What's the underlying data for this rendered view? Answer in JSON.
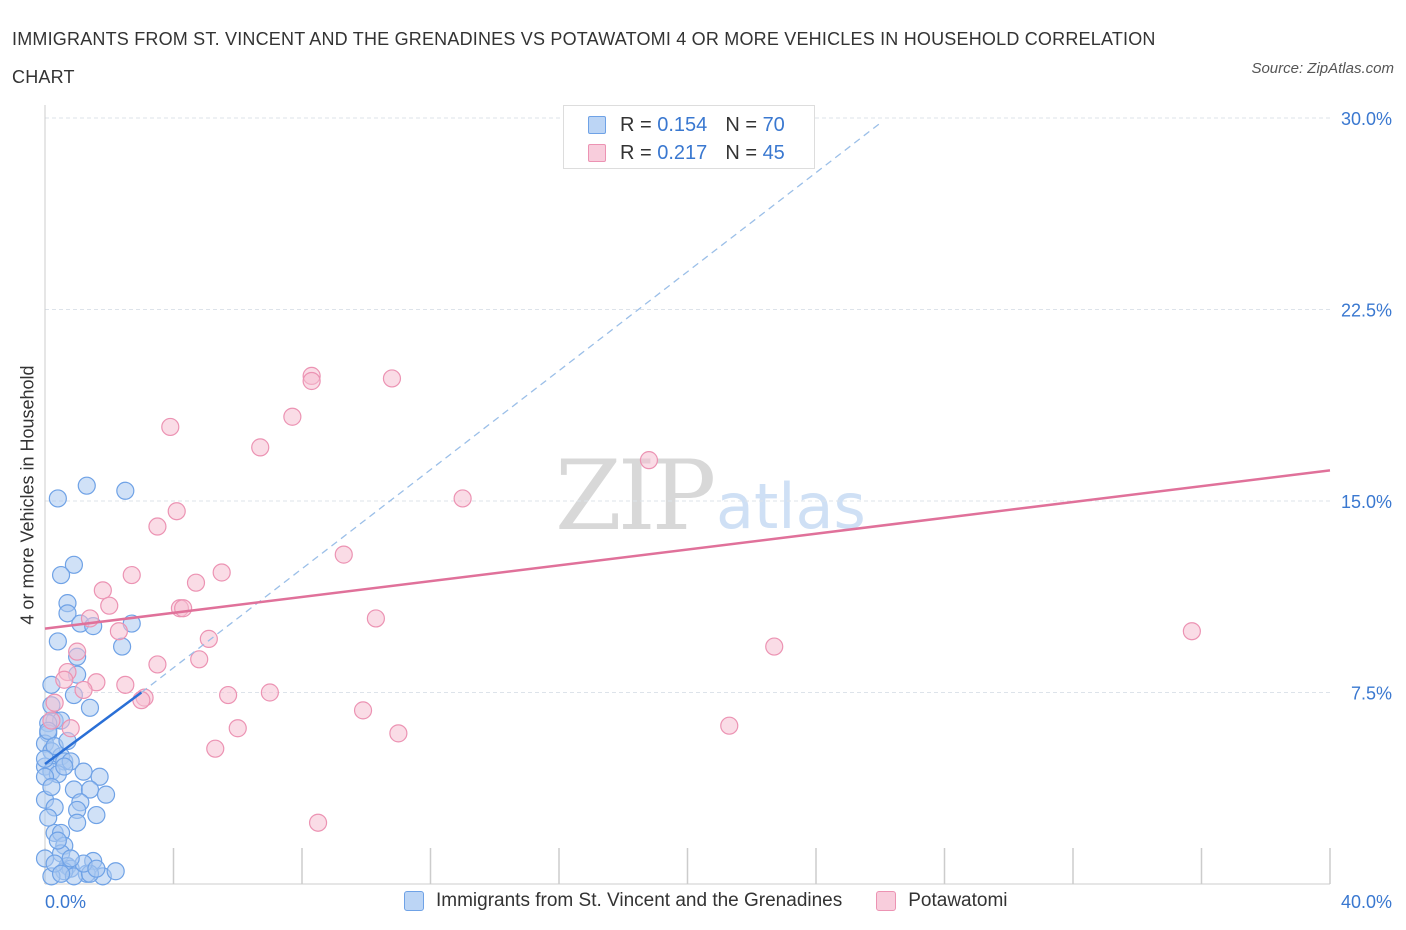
{
  "title": "IMMIGRANTS FROM ST. VINCENT AND THE GRENADINES VS POTAWATOMI 4 OR MORE VEHICLES IN HOUSEHOLD CORRELATION CHART",
  "source": "Source: ZipAtlas.com",
  "watermark": {
    "zip": "ZIP",
    "atlas": "atlas"
  },
  "legend": {
    "rows": [
      {
        "r_label": "R = ",
        "r_value": "0.154",
        "n_label": "N = ",
        "n_value": "70"
      },
      {
        "r_label": "R = ",
        "r_value": "0.217",
        "n_label": "N = ",
        "n_value": "45"
      }
    ]
  },
  "colors": {
    "blue_fill": "#a9c8f0",
    "blue_stroke": "#6fa2e6",
    "blue_line": "#2a6fd6",
    "pink_fill": "#f6bfd1",
    "pink_stroke": "#ec93b3",
    "pink_line": "#e0719a",
    "tick_label": "#3a78d0",
    "grid": "#dde3ea"
  },
  "chart_data": {
    "type": "scatter",
    "title": "IMMIGRANTS FROM ST. VINCENT AND THE GRENADINES VS POTAWATOMI 4 OR MORE VEHICLES IN HOUSEHOLD CORRELATION CHART",
    "xlabel": "",
    "ylabel": "4 or more Vehicles in Household",
    "xlim": [
      0,
      40
    ],
    "ylim": [
      0,
      30
    ],
    "x_tick_labels": [
      "0.0%",
      "40.0%"
    ],
    "y_ticks": [
      7.5,
      15.0,
      22.5,
      30.0
    ],
    "y_tick_labels": [
      "7.5%",
      "15.0%",
      "22.5%",
      "30.0%"
    ],
    "x_minor_ticks": [
      0,
      4,
      8,
      12,
      16,
      20,
      24,
      28,
      32,
      36,
      40
    ],
    "series": [
      {
        "name": "Immigrants from St. Vincent and the Grenadines",
        "color": "#a9c8f0",
        "R": 0.154,
        "N": 70,
        "points": [
          [
            1.3,
            15.6
          ],
          [
            0.4,
            15.1
          ],
          [
            2.5,
            15.4
          ],
          [
            0.9,
            12.5
          ],
          [
            0.5,
            12.1
          ],
          [
            0.7,
            11.0
          ],
          [
            0.7,
            10.6
          ],
          [
            1.1,
            10.2
          ],
          [
            1.5,
            10.1
          ],
          [
            2.7,
            10.2
          ],
          [
            2.4,
            9.3
          ],
          [
            0.4,
            9.5
          ],
          [
            1.0,
            8.9
          ],
          [
            1.0,
            8.2
          ],
          [
            0.2,
            7.8
          ],
          [
            0.9,
            7.4
          ],
          [
            1.4,
            6.9
          ],
          [
            0.3,
            6.4
          ],
          [
            0.5,
            6.4
          ],
          [
            0.1,
            6.3
          ],
          [
            0.1,
            5.9
          ],
          [
            0.0,
            5.5
          ],
          [
            0.2,
            5.2
          ],
          [
            0.5,
            5.0
          ],
          [
            0.6,
            4.8
          ],
          [
            0.8,
            4.8
          ],
          [
            0.0,
            4.6
          ],
          [
            0.2,
            4.4
          ],
          [
            0.4,
            4.3
          ],
          [
            0.0,
            4.2
          ],
          [
            1.2,
            4.4
          ],
          [
            1.7,
            4.2
          ],
          [
            0.9,
            3.7
          ],
          [
            1.4,
            3.7
          ],
          [
            0.0,
            3.3
          ],
          [
            1.1,
            3.2
          ],
          [
            0.3,
            3.0
          ],
          [
            1.0,
            2.9
          ],
          [
            1.6,
            2.7
          ],
          [
            0.3,
            2.0
          ],
          [
            0.5,
            2.0
          ],
          [
            0.6,
            1.5
          ],
          [
            0.5,
            1.2
          ],
          [
            0.0,
            1.0
          ],
          [
            1.5,
            0.9
          ],
          [
            0.7,
            0.7
          ],
          [
            0.8,
            0.6
          ],
          [
            0.6,
            0.5
          ],
          [
            1.3,
            0.4
          ],
          [
            0.9,
            0.3
          ],
          [
            0.2,
            0.3
          ],
          [
            1.8,
            0.3
          ],
          [
            1.4,
            0.4
          ],
          [
            0.1,
            6.0
          ],
          [
            0.3,
            5.4
          ],
          [
            0.0,
            4.9
          ],
          [
            0.6,
            4.6
          ],
          [
            0.2,
            3.8
          ],
          [
            1.0,
            2.4
          ],
          [
            0.4,
            1.7
          ],
          [
            1.2,
            0.8
          ],
          [
            0.8,
            1.0
          ],
          [
            1.6,
            0.6
          ],
          [
            0.3,
            0.8
          ],
          [
            0.5,
            0.4
          ],
          [
            2.2,
            0.5
          ],
          [
            0.1,
            2.6
          ],
          [
            0.7,
            5.6
          ],
          [
            0.2,
            7.0
          ],
          [
            1.9,
            3.5
          ]
        ],
        "trend": {
          "x": [
            0,
            3.0
          ],
          "y": [
            4.7,
            7.5
          ]
        },
        "trend_ext": {
          "x": [
            3.0,
            26.0
          ],
          "y": [
            7.5,
            29.8
          ]
        }
      },
      {
        "name": "Potawatomi",
        "color": "#f6bfd1",
        "R": 0.217,
        "N": 45,
        "points": [
          [
            8.3,
            19.9
          ],
          [
            8.3,
            19.7
          ],
          [
            10.8,
            19.8
          ],
          [
            7.7,
            18.3
          ],
          [
            3.9,
            17.9
          ],
          [
            6.7,
            17.1
          ],
          [
            18.8,
            16.6
          ],
          [
            13.0,
            15.1
          ],
          [
            4.1,
            14.6
          ],
          [
            3.5,
            14.0
          ],
          [
            9.3,
            12.9
          ],
          [
            2.7,
            12.1
          ],
          [
            5.5,
            12.2
          ],
          [
            4.7,
            11.8
          ],
          [
            1.8,
            11.5
          ],
          [
            2.0,
            10.9
          ],
          [
            4.2,
            10.8
          ],
          [
            4.3,
            10.8
          ],
          [
            1.4,
            10.4
          ],
          [
            10.3,
            10.4
          ],
          [
            35.7,
            9.9
          ],
          [
            2.3,
            9.9
          ],
          [
            5.1,
            9.6
          ],
          [
            22.7,
            9.3
          ],
          [
            1.0,
            9.1
          ],
          [
            4.8,
            8.8
          ],
          [
            3.5,
            8.6
          ],
          [
            0.7,
            8.3
          ],
          [
            0.6,
            8.0
          ],
          [
            1.6,
            7.9
          ],
          [
            2.5,
            7.8
          ],
          [
            1.2,
            7.6
          ],
          [
            3.1,
            7.3
          ],
          [
            3.0,
            7.2
          ],
          [
            5.7,
            7.4
          ],
          [
            7.0,
            7.5
          ],
          [
            0.3,
            7.1
          ],
          [
            9.9,
            6.8
          ],
          [
            0.8,
            6.1
          ],
          [
            6.0,
            6.1
          ],
          [
            11.0,
            5.9
          ],
          [
            21.3,
            6.2
          ],
          [
            5.3,
            5.3
          ],
          [
            8.5,
            2.4
          ],
          [
            0.2,
            6.4
          ]
        ],
        "trend": {
          "x": [
            0,
            40
          ],
          "y": [
            10.0,
            16.2
          ]
        }
      }
    ]
  },
  "bottom_legend": [
    {
      "label": "Immigrants from St. Vincent and the Grenadines"
    },
    {
      "label": "Potawatomi"
    }
  ]
}
